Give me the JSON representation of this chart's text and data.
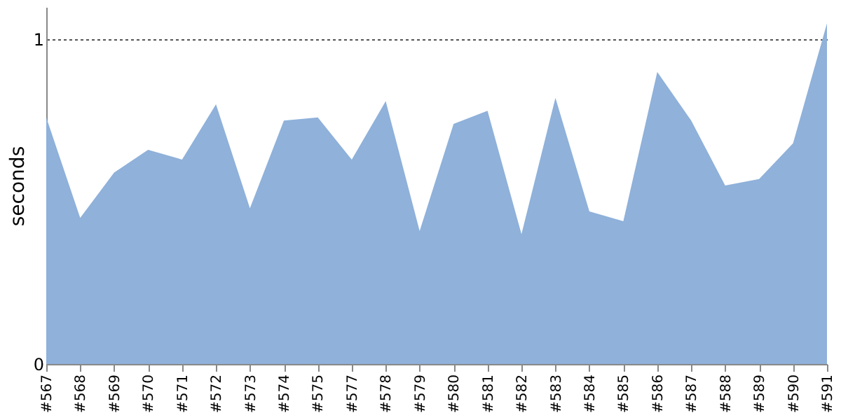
{
  "chart_data": {
    "type": "area",
    "ylabel": "seconds",
    "categories": [
      "#567",
      "#568",
      "#569",
      "#570",
      "#571",
      "#572",
      "#573",
      "#574",
      "#575",
      "#577",
      "#578",
      "#579",
      "#580",
      "#581",
      "#582",
      "#583",
      "#584",
      "#585",
      "#586",
      "#587",
      "#588",
      "#589",
      "#590",
      "#591"
    ],
    "series": [
      {
        "color": "#8fb1da",
        "values": [
          0.76,
          0.45,
          0.59,
          0.66,
          0.63,
          0.8,
          0.48,
          0.75,
          0.76,
          0.63,
          0.81,
          0.41,
          0.74,
          0.78,
          0.4,
          0.82,
          0.47,
          0.44,
          0.9,
          0.75,
          0.55,
          0.57,
          0.68,
          1.05
        ]
      }
    ],
    "ylim": [
      0,
      1.1
    ],
    "yticks": [
      0,
      1
    ],
    "grid": "y"
  }
}
